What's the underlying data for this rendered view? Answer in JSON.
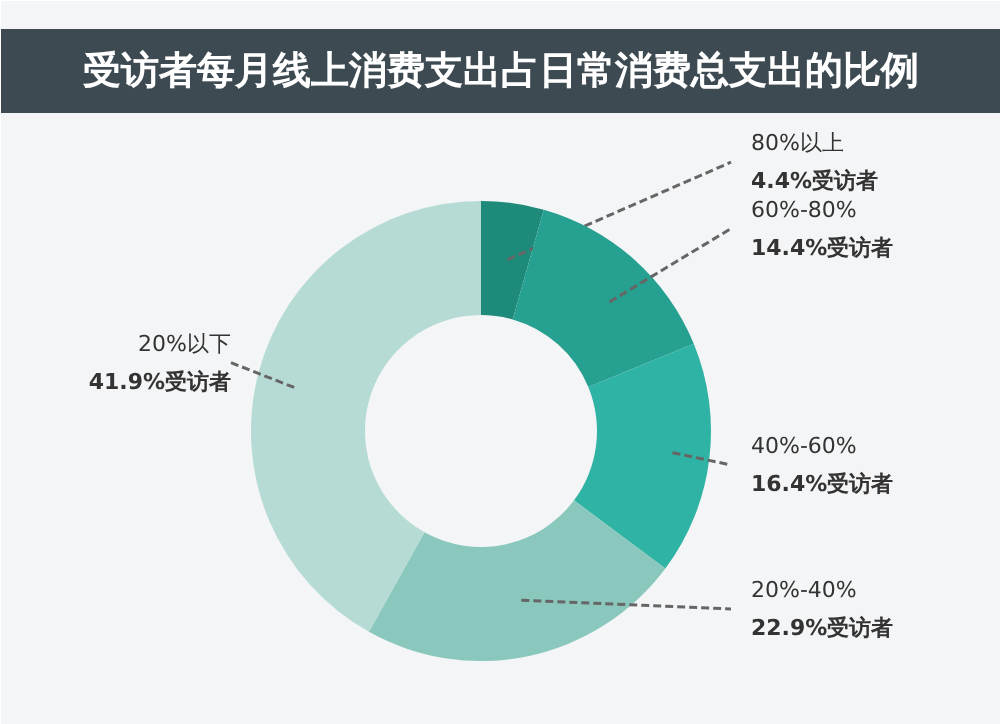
{
  "chart_data": {
    "type": "donut",
    "title": "受访者每月线上消费支出占日常消费总支出的比例",
    "categories": [
      "80%以上",
      "60%-80%",
      "40%-60%",
      "20%-40%",
      "20%以下"
    ],
    "values": [
      4.4,
      14.4,
      16.4,
      22.9,
      41.9
    ],
    "colors": [
      "#1e8a7a",
      "#26a090",
      "#2eb3a5",
      "#8ac8bd",
      "#b6dbd5"
    ],
    "value_labels": [
      "4.4%受访者",
      "14.4%受访者",
      "16.4%受访者",
      "22.9%受访者",
      "41.9%受访者"
    ]
  }
}
